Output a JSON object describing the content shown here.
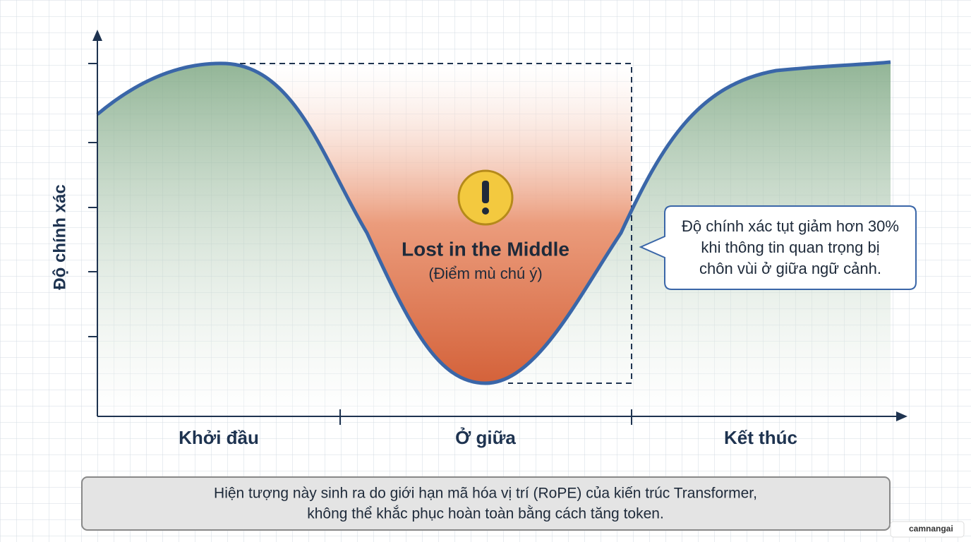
{
  "axis": {
    "y_label": "Độ chính xác",
    "x_labels": [
      "Khởi đầu",
      "Ở giữa",
      "Kết thúc"
    ]
  },
  "highlight": {
    "title": "Lost in the Middle",
    "subtitle": "(Điểm mù chú ý)"
  },
  "callout": {
    "lines": [
      "Độ chính xác tụt giảm hơn 30%",
      "khi thông tin quan trọng bị",
      "chôn vùi ở giữa ngữ cảnh."
    ]
  },
  "footer": {
    "lines": [
      "Hiện tượng này sinh ra do giới hạn mã hóa vị trí (RoPE) của kiến trúc Transformer,",
      "không thể khắc phục hoàn toàn bằng cách tăng token."
    ]
  },
  "watermark": "camnangai"
}
